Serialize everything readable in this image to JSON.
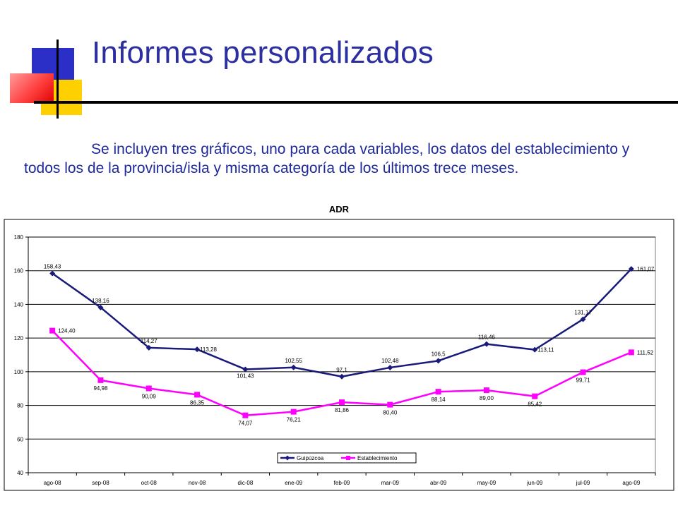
{
  "slide": {
    "title": "Informes personalizados",
    "intro": "Se incluyen tres gráficos, uno para cada variables, los datos del establecimiento y todos los de la provincia/isla y misma categoría de los últimos trece meses."
  },
  "colors": {
    "title": "#2b2fa0",
    "guipuzcoa": "#1a1a7a",
    "establecimiento": "#ff00ff"
  },
  "chart_data": {
    "type": "line",
    "title": "ADR",
    "categories": [
      "ago-08",
      "sep-08",
      "oct-08",
      "nov-08",
      "dic-08",
      "ene-09",
      "feb-09",
      "mar-09",
      "abr-09",
      "may-09",
      "jun-09",
      "jul-09",
      "ago-09"
    ],
    "ylim": [
      40,
      180
    ],
    "yticks": [
      "40",
      "60",
      "80",
      "100",
      "120",
      "140",
      "160",
      "180"
    ],
    "grid": true,
    "legend_position": "bottom-center",
    "series": [
      {
        "name": "Guipúzcoa",
        "marker": "diamond",
        "values": [
          158.43,
          138.16,
          114.27,
          113.28,
          101.43,
          102.55,
          97.1,
          102.48,
          106.5,
          116.46,
          113.11,
          131.17,
          161.07
        ],
        "labels": [
          "158,43",
          "138,16",
          "114,27",
          "113,28",
          "101,43",
          "102,55",
          "97,1",
          "102,48",
          "106,5",
          "116,46",
          "113,11",
          "131,17",
          "161,07"
        ]
      },
      {
        "name": "Establecimiento",
        "marker": "square",
        "values": [
          124.4,
          94.98,
          90.09,
          86.35,
          74.07,
          76.21,
          81.86,
          80.4,
          88.14,
          89.0,
          85.42,
          99.71,
          111.52
        ],
        "labels": [
          "124,40",
          "94,98",
          "90,09",
          "86,35",
          "74,07",
          "76,21",
          "81,86",
          "80,40",
          "88,14",
          "89,00",
          "85,42",
          "99,71",
          "111,52"
        ]
      }
    ]
  }
}
